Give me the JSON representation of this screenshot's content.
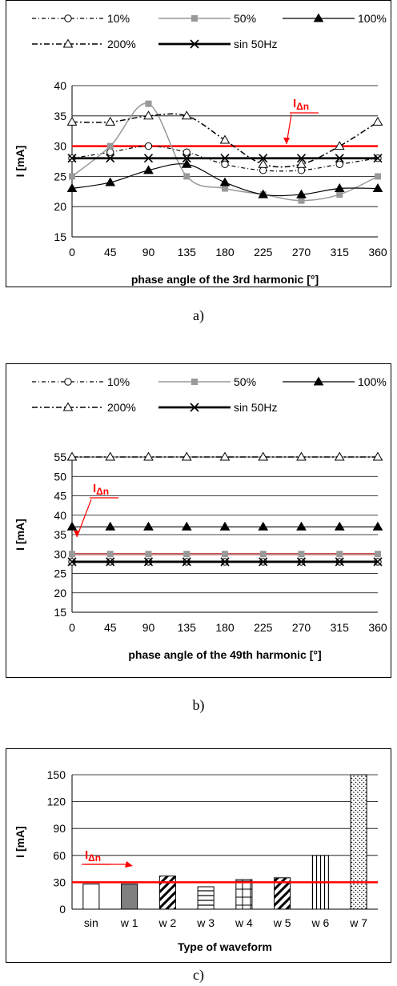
{
  "chart_data": [
    {
      "type": "line",
      "caption": "a)",
      "xlabel": "phase angle of the 3rd harmonic [°]",
      "ylabel": "I [mA]",
      "x": [
        0,
        45,
        90,
        135,
        180,
        225,
        270,
        315,
        360
      ],
      "xlim": [
        0,
        360
      ],
      "ylim": [
        15,
        40
      ],
      "yticks": [
        15,
        20,
        25,
        30,
        35,
        40
      ],
      "grid": true,
      "legend_position": "top",
      "threshold": {
        "value": 30,
        "label_main": "I",
        "label_sub": "Δn",
        "color": "#ff0000"
      },
      "series": [
        {
          "name": "10%",
          "values": [
            28,
            29,
            30,
            29,
            27,
            26,
            26,
            27,
            28
          ]
        },
        {
          "name": "50%",
          "values": [
            25,
            30,
            37,
            25,
            23,
            22,
            21,
            22,
            25
          ]
        },
        {
          "name": "100%",
          "values": [
            23,
            24,
            26,
            27,
            24,
            22,
            22,
            23,
            23
          ]
        },
        {
          "name": "200%",
          "values": [
            34,
            34,
            35,
            35,
            31,
            27,
            27,
            30,
            34
          ]
        },
        {
          "name": "sin 50Hz",
          "values": [
            28,
            28,
            28,
            28,
            28,
            28,
            28,
            28,
            28
          ]
        }
      ]
    },
    {
      "type": "line",
      "caption": "b)",
      "xlabel": "phase angle of the 49th harmonic [°]",
      "ylabel": "I [mA]",
      "x": [
        0,
        45,
        90,
        135,
        180,
        225,
        270,
        315,
        360
      ],
      "xlim": [
        0,
        360
      ],
      "ylim": [
        15,
        55
      ],
      "yticks": [
        15,
        20,
        25,
        30,
        35,
        40,
        45,
        50,
        55
      ],
      "grid": true,
      "legend_position": "top",
      "threshold": {
        "value": 30,
        "label_main": "I",
        "label_sub": "Δn",
        "color": "#ff0000"
      },
      "series": [
        {
          "name": "10%",
          "values": [
            28,
            28,
            28,
            28,
            28,
            28,
            28,
            28,
            28
          ]
        },
        {
          "name": "50%",
          "values": [
            30,
            30,
            30,
            30,
            30,
            30,
            30,
            30,
            30
          ]
        },
        {
          "name": "100%",
          "values": [
            37,
            37,
            37,
            37,
            37,
            37,
            37,
            37,
            37
          ]
        },
        {
          "name": "200%",
          "values": [
            55,
            55,
            55,
            55,
            55,
            55,
            55,
            55,
            55
          ]
        },
        {
          "name": "sin 50Hz",
          "values": [
            28,
            28,
            28,
            28,
            28,
            28,
            28,
            28,
            28
          ]
        }
      ]
    },
    {
      "type": "bar",
      "caption": "c)",
      "xlabel": "Type of waveform",
      "ylabel": "I [mA]",
      "categories": [
        "sin",
        "w 1",
        "w 2",
        "w 3",
        "w 4",
        "w 5",
        "w 6",
        "w 7"
      ],
      "values": [
        28,
        28,
        37,
        25,
        33,
        35,
        60,
        150
      ],
      "patterns": [
        "white",
        "gray",
        "diagonal",
        "horizontal",
        "grid",
        "diagonal",
        "vertical",
        "dots"
      ],
      "ylim": [
        0,
        150
      ],
      "yticks": [
        0,
        30,
        60,
        90,
        120,
        150
      ],
      "grid": true,
      "threshold": {
        "value": 30,
        "label_main": "I",
        "label_sub": "Δn",
        "color": "#ff0000"
      }
    }
  ]
}
